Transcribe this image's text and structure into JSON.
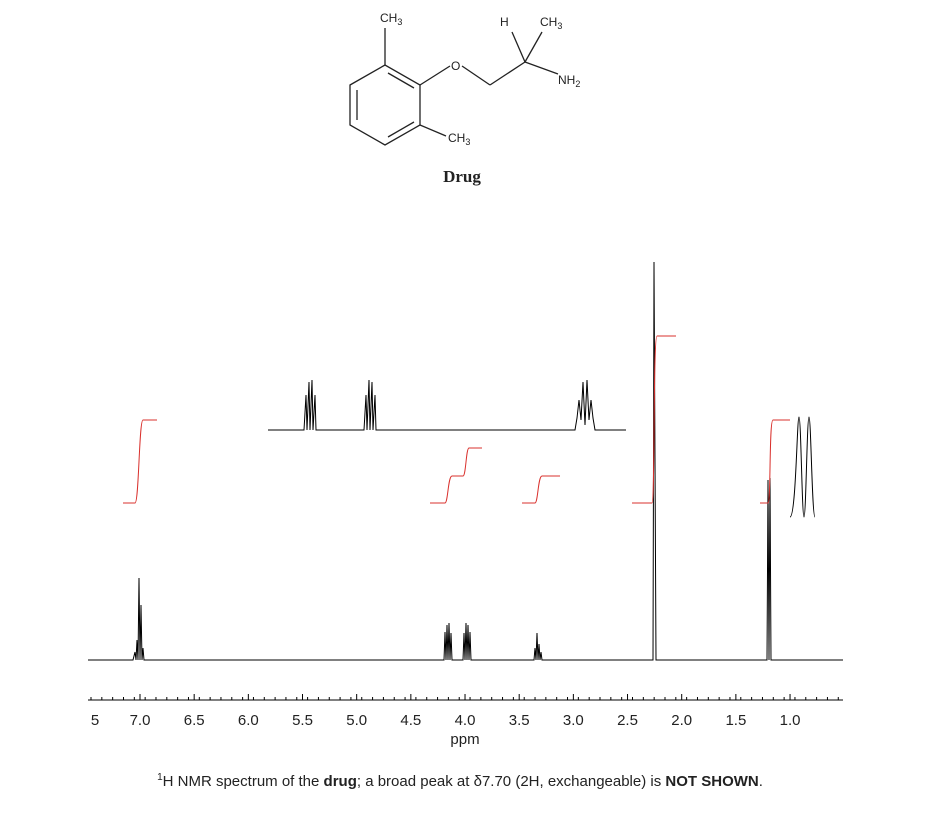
{
  "structure": {
    "labels": [
      {
        "main": "CH",
        "sub": "3"
      },
      {
        "main": "O"
      },
      {
        "main": "H"
      },
      {
        "main": "CH",
        "sub": "3"
      },
      {
        "main": "NH",
        "sub": "2"
      },
      {
        "main": "CH",
        "sub": "3"
      }
    ],
    "name": "Drug"
  },
  "axis": {
    "ticks": [
      "5",
      "7.0",
      "6.5",
      "6.0",
      "5.5",
      "5.0",
      "4.5",
      "4.0",
      "3.5",
      "3.0",
      "2.5",
      "2.0",
      "1.5",
      "1.0"
    ],
    "label": "ppm"
  },
  "caption": {
    "sup": "1",
    "part1": "H NMR spectrum of the ",
    "bold1": "drug",
    "part2": "; a broad peak at δ7.70 (2H, exchangeable) is ",
    "bold2": "NOT SHOWN",
    "part3": "."
  }
}
